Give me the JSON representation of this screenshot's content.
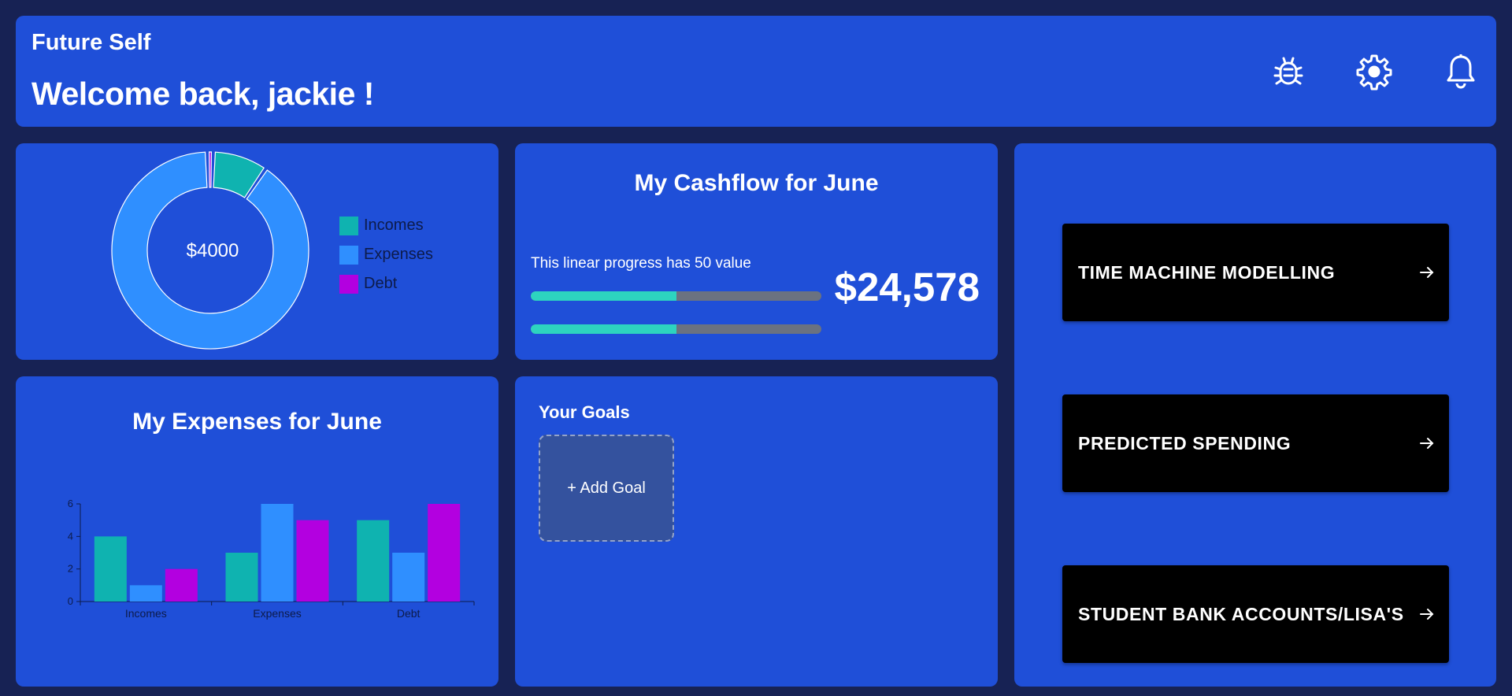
{
  "header": {
    "app_title": "Future Self",
    "welcome": "Welcome back, jackie !",
    "icons": [
      "bug-icon",
      "gear-icon",
      "bell-icon"
    ]
  },
  "donut": {
    "center_label": "$4000",
    "legend": [
      {
        "label": "Incomes",
        "color": "#0fb3b0"
      },
      {
        "label": "Expenses",
        "color": "#2f8fff"
      },
      {
        "label": "Debt",
        "color": "#b300e0"
      }
    ],
    "slices": [
      {
        "label": "Incomes",
        "value": 9
      },
      {
        "label": "Expenses",
        "value": 90
      },
      {
        "label": "Debt",
        "value": 1
      }
    ]
  },
  "cashflow": {
    "title": "My Cashflow for June",
    "caption": "This linear progress has 50 value",
    "progress": [
      50,
      50
    ],
    "amount": "$24,578"
  },
  "expenses": {
    "title": "My Expenses for June"
  },
  "goals": {
    "title": "Your Goals",
    "add_label": "+ Add Goal"
  },
  "nav": {
    "buttons": [
      {
        "label": "TIME MACHINE MODELLING"
      },
      {
        "label": "PREDICTED SPENDING"
      },
      {
        "label": "STUDENT BANK ACCOUNTS/LISA'S"
      }
    ]
  },
  "colors": {
    "background": "#172254",
    "card": "#1f4fd8",
    "progress_fill": "#2dd4bf",
    "progress_track": "#6b7280"
  },
  "chart_data": {
    "type": "bar",
    "categories": [
      "Incomes",
      "Expenses",
      "Debt"
    ],
    "series": [
      {
        "values": [
          4,
          3,
          5
        ],
        "color": "#0fb3b0"
      },
      {
        "values": [
          1,
          6,
          3
        ],
        "color": "#2f8fff"
      },
      {
        "values": [
          2,
          5,
          6
        ],
        "color": "#b300e0"
      }
    ],
    "yticks": [
      0,
      2,
      4,
      6
    ],
    "ylim": [
      0,
      6
    ],
    "xlabel": "",
    "ylabel": ""
  }
}
